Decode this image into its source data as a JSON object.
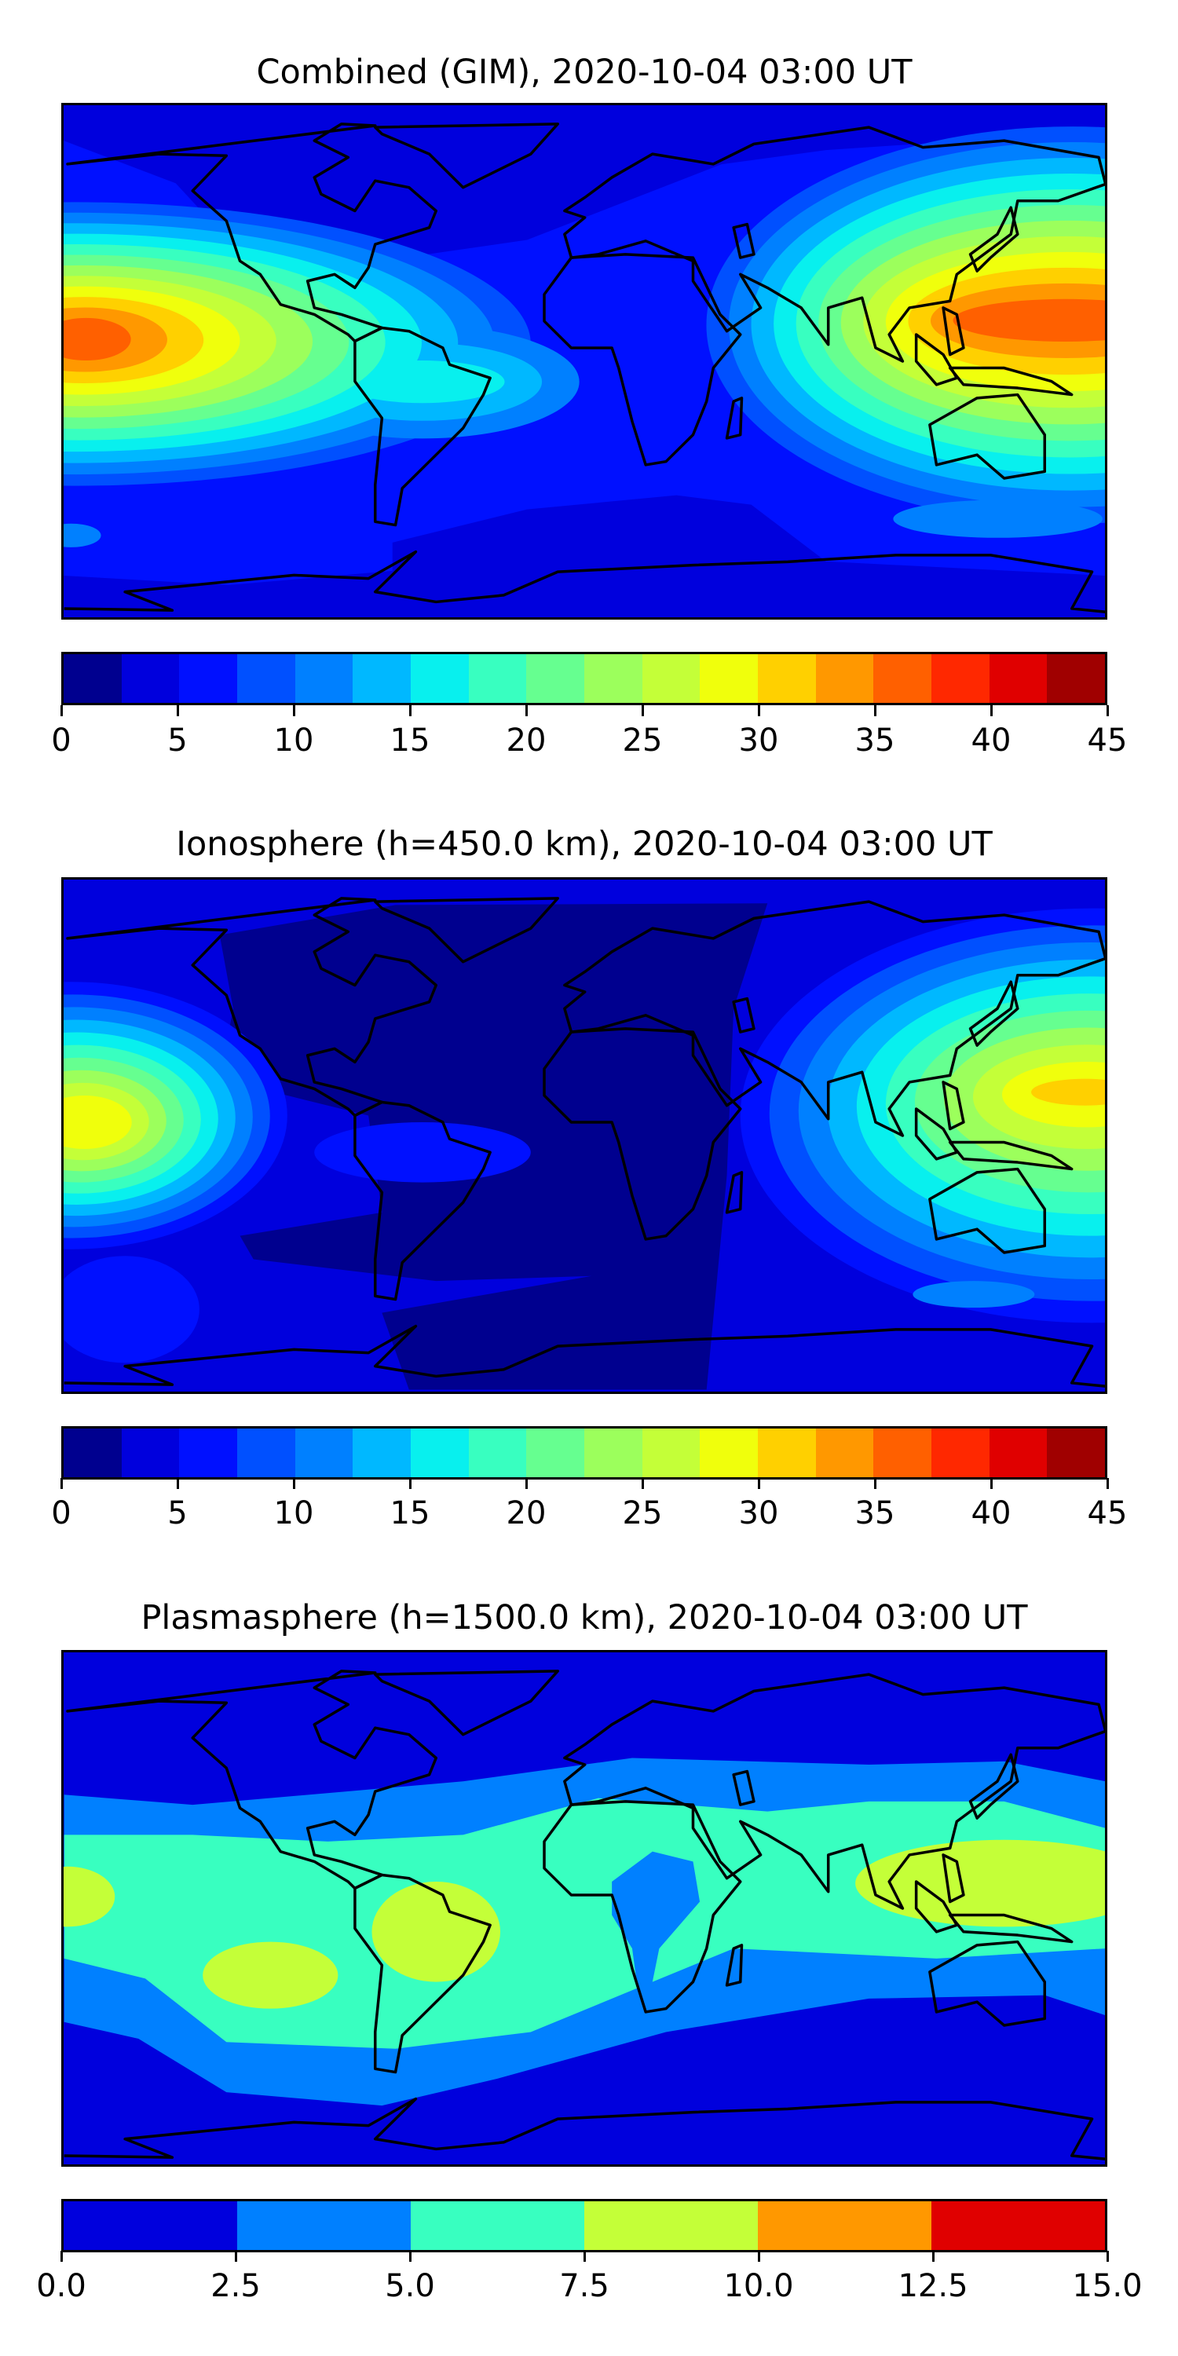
{
  "chart_data": [
    {
      "type": "heatmap",
      "title": "Combined (GIM), 2020-10-04 03:00 UT",
      "colorbar": {
        "range": [
          0,
          45
        ],
        "boundaries": [
          0,
          2.5,
          5,
          7.5,
          10,
          12.5,
          15,
          17.5,
          20,
          22.5,
          25,
          27.5,
          30,
          32.5,
          35,
          37.5,
          40,
          42.5,
          45
        ],
        "tick_values": [
          0,
          5,
          10,
          15,
          20,
          25,
          30,
          35,
          40,
          45
        ],
        "tick_labels": [
          "0",
          "5",
          "10",
          "15",
          "20",
          "25",
          "30",
          "35",
          "40",
          "45"
        ],
        "colors": [
          "#00008f",
          "#0000dd",
          "#0010ff",
          "#0050ff",
          "#0080ff",
          "#00b8ff",
          "#08f0ee",
          "#38ffc0",
          "#66ff90",
          "#9cff5c",
          "#c4ff38",
          "#f0ff0c",
          "#ffd000",
          "#ff9800",
          "#ff6000",
          "#ff2800",
          "#e00000",
          "#a00000"
        ]
      },
      "peaks": [
        {
          "region": "central Pacific",
          "approx_value": 37.5
        },
        {
          "region": "western Pacific / SE Asia",
          "approx_value": 37.5
        }
      ]
    },
    {
      "type": "heatmap",
      "title": "Ionosphere  (h=450.0 km), 2020-10-04 03:00 UT",
      "colorbar": {
        "range": [
          0,
          45
        ],
        "boundaries": [
          0,
          2.5,
          5,
          7.5,
          10,
          12.5,
          15,
          17.5,
          20,
          22.5,
          25,
          27.5,
          30,
          32.5,
          35,
          37.5,
          40,
          42.5,
          45
        ],
        "tick_values": [
          0,
          5,
          10,
          15,
          20,
          25,
          30,
          35,
          40,
          45
        ],
        "tick_labels": [
          "0",
          "5",
          "10",
          "15",
          "20",
          "25",
          "30",
          "35",
          "40",
          "45"
        ],
        "colors": [
          "#00008f",
          "#0000dd",
          "#0010ff",
          "#0050ff",
          "#0080ff",
          "#00b8ff",
          "#08f0ee",
          "#38ffc0",
          "#66ff90",
          "#9cff5c",
          "#c4ff38",
          "#f0ff0c",
          "#ffd000",
          "#ff9800",
          "#ff6000",
          "#ff2800",
          "#e00000",
          "#a00000"
        ]
      },
      "peaks": [
        {
          "region": "central Pacific",
          "approx_value": 30
        },
        {
          "region": "western Pacific / SE Asia",
          "approx_value": 32.5
        }
      ]
    },
    {
      "type": "heatmap",
      "title": "Plasmasphere (h=1500.0 km), 2020-10-04 03:00 UT",
      "colorbar": {
        "range": [
          0,
          15
        ],
        "boundaries": [
          0,
          2.5,
          5,
          7.5,
          10,
          12.5,
          15
        ],
        "tick_values": [
          0,
          2.5,
          5,
          7.5,
          10,
          12.5,
          15
        ],
        "tick_labels": [
          "0.0",
          "2.5",
          "5.0",
          "7.5",
          "10.0",
          "12.5",
          "15.0"
        ],
        "colors": [
          "#0000dd",
          "#0080ff",
          "#38ffc0",
          "#c4ff38",
          "#ff9800",
          "#e00000"
        ]
      },
      "peaks": [
        {
          "region": "South America",
          "approx_value": 10
        },
        {
          "region": "western Pacific / SE Asia",
          "approx_value": 10
        }
      ]
    }
  ]
}
